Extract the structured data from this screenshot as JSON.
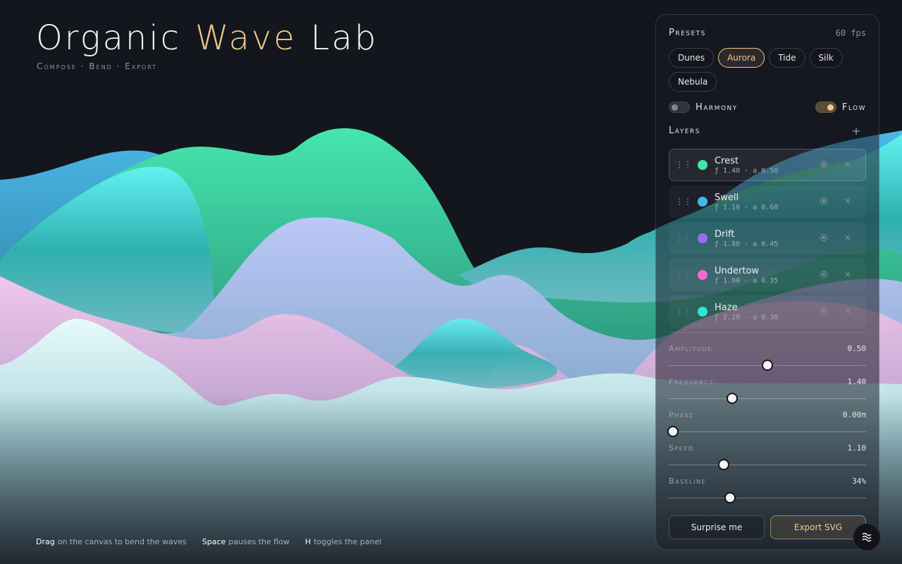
{
  "header": {
    "title": {
      "first": "Organic",
      "accent": "Wave",
      "last": "Lab"
    },
    "subtitle": "Compose · Bend · Export"
  },
  "panel": {
    "presets": {
      "title": "Presets",
      "fps": "60 fps",
      "items": [
        "Dunes",
        "Aurora",
        "Tide",
        "Silk",
        "Nebula"
      ],
      "active": "Aurora"
    },
    "toggles": [
      {
        "label": "Harmony",
        "on": false
      },
      {
        "label": "Flow",
        "on": true
      }
    ],
    "layers": {
      "title": "Layers",
      "selected": "Crest",
      "items": [
        {
          "name": "Crest",
          "params": "ƒ 1.40 · a 0.50",
          "color": "#3ee8a8"
        },
        {
          "name": "Swell",
          "params": "ƒ 1.10 · a 0.60",
          "color": "#3db8f0"
        },
        {
          "name": "Drift",
          "params": "ƒ 1.80 · a 0.45",
          "color": "#9b6cf0"
        },
        {
          "name": "Undertow",
          "params": "ƒ 1.00 · a 0.35",
          "color": "#f26bd2"
        },
        {
          "name": "Haze",
          "params": "ƒ 2.20 · a 0.30",
          "color": "#2ee6d2"
        }
      ]
    },
    "sliders": [
      {
        "label": "Amplitude",
        "value": "0.50"
      },
      {
        "label": "Frequency",
        "value": "1.40"
      },
      {
        "label": "Phase",
        "value": "0.00π"
      },
      {
        "label": "Speed",
        "value": "1.10"
      },
      {
        "label": "Baseline",
        "value": "34%"
      }
    ],
    "actions": [
      "Surprise me",
      "Export SVG"
    ]
  },
  "hints": [
    {
      "key": "Drag",
      "text": "on the canvas to bend the waves"
    },
    {
      "key": "Space",
      "text": "pauses the flow"
    },
    {
      "key": "H",
      "text": "toggles the panel"
    }
  ]
}
